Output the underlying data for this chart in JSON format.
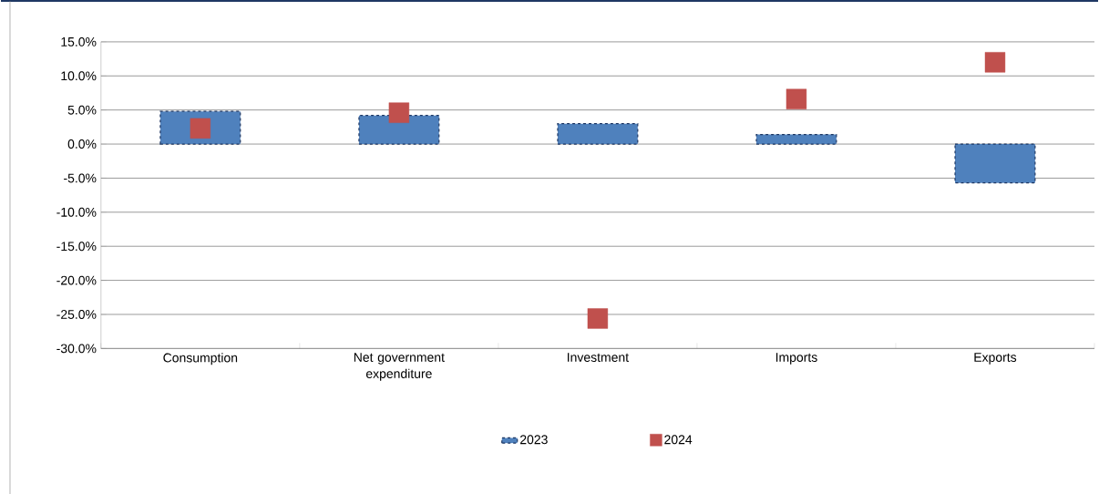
{
  "chart_data": {
    "type": "bar",
    "categories": [
      "Consumption",
      "Net government expenditure",
      "Investment",
      "Imports",
      "Exports"
    ],
    "series": [
      {
        "name": "2023",
        "color": "#4f81bd",
        "line_style": "dashed",
        "values": [
          4.8,
          4.2,
          3.0,
          1.4,
          -5.7
        ]
      },
      {
        "name": "2024",
        "type": "scatter",
        "color": "#c0504d",
        "marker": "square",
        "values": [
          2.3,
          4.6,
          -25.6,
          6.6,
          12.0
        ]
      }
    ],
    "ylim": [
      -30,
      15
    ],
    "yticks": [
      {
        "value": -30,
        "label": "-30.0%"
      },
      {
        "value": -25,
        "label": "-25.0%"
      },
      {
        "value": -20,
        "label": "-20.0%"
      },
      {
        "value": -15,
        "label": "-15.0%"
      },
      {
        "value": -10,
        "label": "-10.0%"
      },
      {
        "value": -5,
        "label": "-5.0%"
      },
      {
        "value": 0,
        "label": "0.0%"
      },
      {
        "value": 5,
        "label": "5.0%"
      },
      {
        "value": 10,
        "label": "10.0%"
      },
      {
        "value": 15,
        "label": "15.0%"
      }
    ],
    "grid": "y",
    "legend": "bottom"
  }
}
